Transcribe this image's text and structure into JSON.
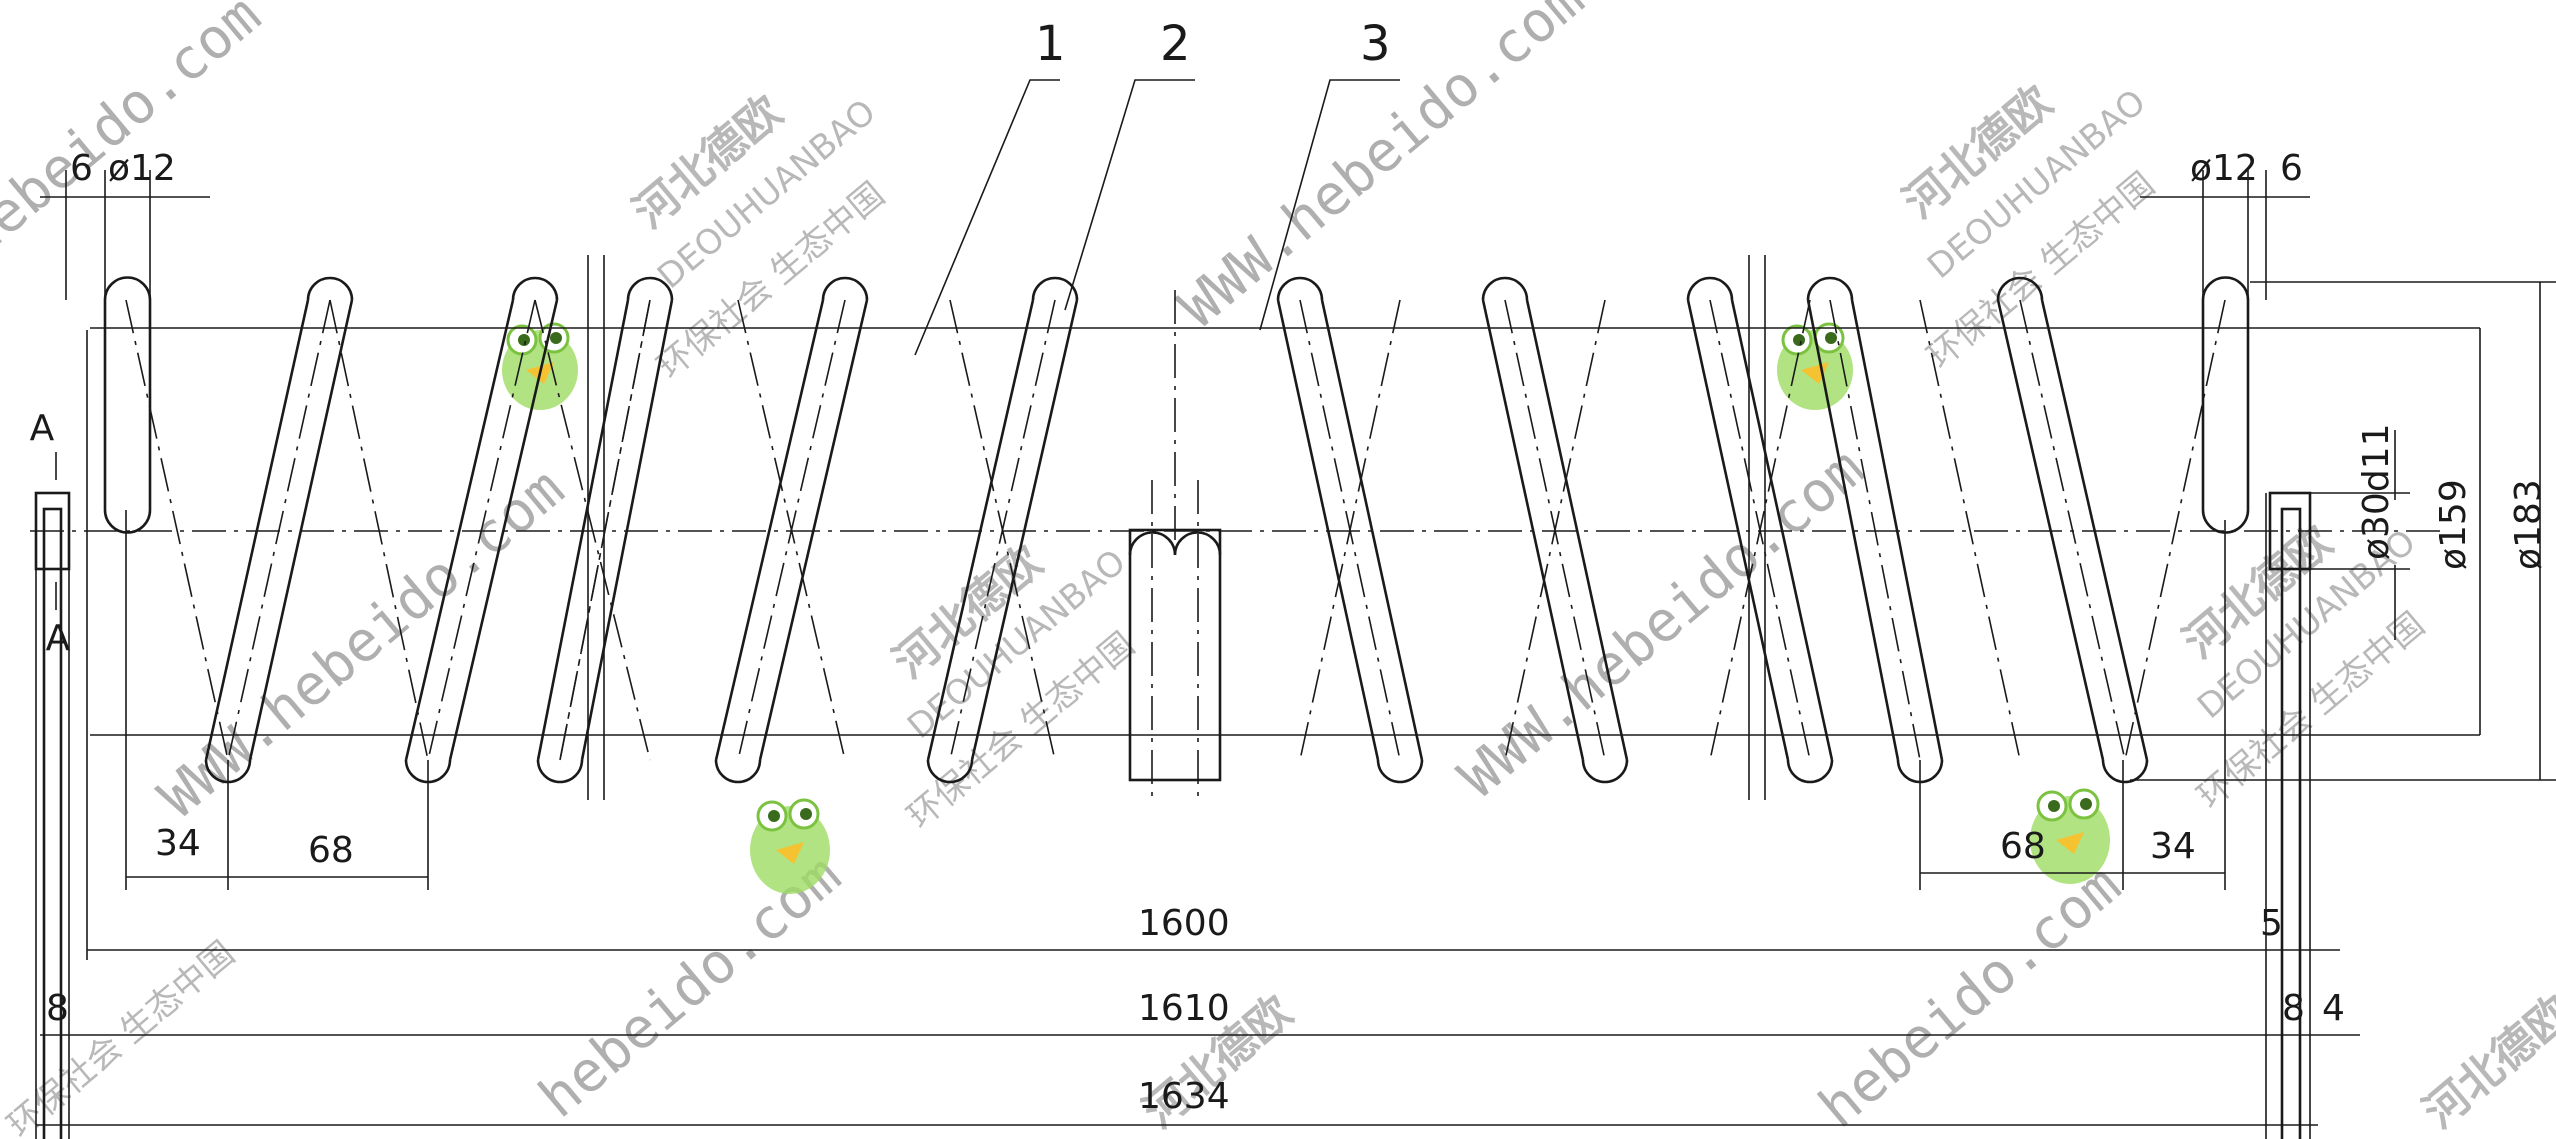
{
  "part_numbers": [
    "1",
    "2",
    "3"
  ],
  "dimensions": {
    "wire_dia_left": "ø12",
    "wire_dia_right": "ø12",
    "end_gap_left": "6",
    "end_gap_right": "6",
    "pitch_end_left": "34",
    "pitch_left": "68",
    "pitch_right": "68",
    "pitch_end_right": "34",
    "free_length": "1600",
    "length_1610": "1610",
    "overall_length": "1634",
    "plate_thickness_left": "8",
    "plate_thickness_right": "8",
    "offset_5": "5",
    "offset_4": "4",
    "inner_dia": "ø30d11",
    "mean_dia": "ø159",
    "outer_dia": "ø183"
  },
  "section": {
    "top": "A",
    "bottom": "A"
  },
  "watermark": {
    "brand": "河北德欧",
    "slogan": "环保社会  生态中国",
    "latin": "DEOUHUANBAO",
    "url": "WWW.hebeido.com",
    "url_short": "hebeido.com"
  },
  "colors": {
    "line": "#1a1a1a",
    "watermark": "#7f7f7f",
    "frog": "#8fd14f"
  }
}
